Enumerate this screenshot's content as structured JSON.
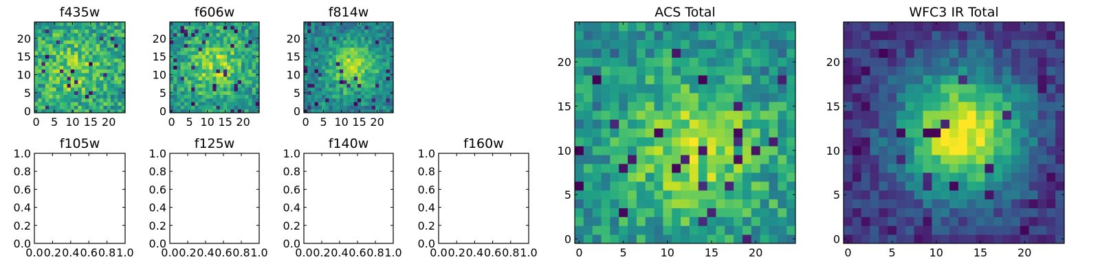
{
  "chart_data": [
    {
      "type": "heatmap",
      "title": "f435w",
      "xticks": [
        "0",
        "5",
        "10",
        "15",
        "20"
      ],
      "yticks": [
        "0",
        "5",
        "10",
        "15",
        "20"
      ],
      "xlim": [
        -0.5,
        24.5
      ],
      "ylim": [
        -0.5,
        24.5
      ],
      "grid_size": [
        25,
        25
      ],
      "colormap": "viridis",
      "seed": 11,
      "center_strength": 0.25,
      "center": [
        10,
        11
      ],
      "sigma": 6
    },
    {
      "type": "heatmap",
      "title": "f606w",
      "xticks": [
        "0",
        "5",
        "10",
        "15",
        "20"
      ],
      "yticks": [
        "0",
        "5",
        "10",
        "15",
        "20"
      ],
      "xlim": [
        -0.5,
        24.5
      ],
      "ylim": [
        -0.5,
        24.5
      ],
      "grid_size": [
        25,
        25
      ],
      "colormap": "viridis",
      "seed": 23,
      "center_strength": 0.35,
      "center": [
        12,
        13
      ],
      "sigma": 6
    },
    {
      "type": "heatmap",
      "title": "f814w",
      "xticks": [
        "0",
        "5",
        "10",
        "15",
        "20"
      ],
      "yticks": [
        "0",
        "5",
        "10",
        "15",
        "20"
      ],
      "xlim": [
        -0.5,
        24.5
      ],
      "ylim": [
        -0.5,
        24.5
      ],
      "grid_size": [
        25,
        25
      ],
      "colormap": "viridis",
      "seed": 37,
      "center_strength": 0.5,
      "center": [
        13,
        12
      ],
      "sigma": 5
    },
    {
      "type": "heatmap",
      "title": "ACS Total",
      "xticks": [
        "0",
        "5",
        "10",
        "15",
        "20"
      ],
      "yticks": [
        "0",
        "5",
        "10",
        "15",
        "20"
      ],
      "xlim": [
        -0.5,
        24.5
      ],
      "ylim": [
        -0.5,
        24.5
      ],
      "grid_size": [
        25,
        25
      ],
      "colormap": "viridis",
      "seed": 53,
      "center_strength": 0.4,
      "center": [
        13,
        10
      ],
      "sigma": 6
    },
    {
      "type": "heatmap",
      "title": "WFC3 IR Total",
      "xticks": [
        "0",
        "5",
        "10",
        "15",
        "20"
      ],
      "yticks": [
        "0",
        "5",
        "10",
        "15",
        "20"
      ],
      "xlim": [
        -0.5,
        24.5
      ],
      "ylim": [
        -0.5,
        24.5
      ],
      "grid_size": [
        25,
        25
      ],
      "colormap": "viridis",
      "seed": 71,
      "center_strength": 1.0,
      "center": [
        13,
        12
      ],
      "sigma": 5
    },
    {
      "type": "scatter",
      "title": "f105w",
      "xticks": [
        "0.0",
        "0.2",
        "0.4",
        "0.6",
        "0.8",
        "1.0"
      ],
      "yticks": [
        "0.0",
        "0.2",
        "0.4",
        "0.6",
        "0.8",
        "1.0"
      ],
      "xlim": [
        0,
        1
      ],
      "ylim": [
        0,
        1
      ],
      "series": []
    },
    {
      "type": "scatter",
      "title": "f125w",
      "xticks": [
        "0.0",
        "0.2",
        "0.4",
        "0.6",
        "0.8",
        "1.0"
      ],
      "yticks": [
        "0.0",
        "0.2",
        "0.4",
        "0.6",
        "0.8",
        "1.0"
      ],
      "xlim": [
        0,
        1
      ],
      "ylim": [
        0,
        1
      ],
      "series": []
    },
    {
      "type": "scatter",
      "title": "f140w",
      "xticks": [
        "0.0",
        "0.2",
        "0.4",
        "0.6",
        "0.8",
        "1.0"
      ],
      "yticks": [
        "0.0",
        "0.2",
        "0.4",
        "0.6",
        "0.8",
        "1.0"
      ],
      "xlim": [
        0,
        1
      ],
      "ylim": [
        0,
        1
      ],
      "series": []
    },
    {
      "type": "scatter",
      "title": "f160w",
      "xticks": [
        "0.0",
        "0.2",
        "0.4",
        "0.6",
        "0.8",
        "1.0"
      ],
      "yticks": [
        "0.0",
        "0.2",
        "0.4",
        "0.6",
        "0.8",
        "1.0"
      ],
      "xlim": [
        0,
        1
      ],
      "ylim": [
        0,
        1
      ],
      "series": []
    }
  ]
}
